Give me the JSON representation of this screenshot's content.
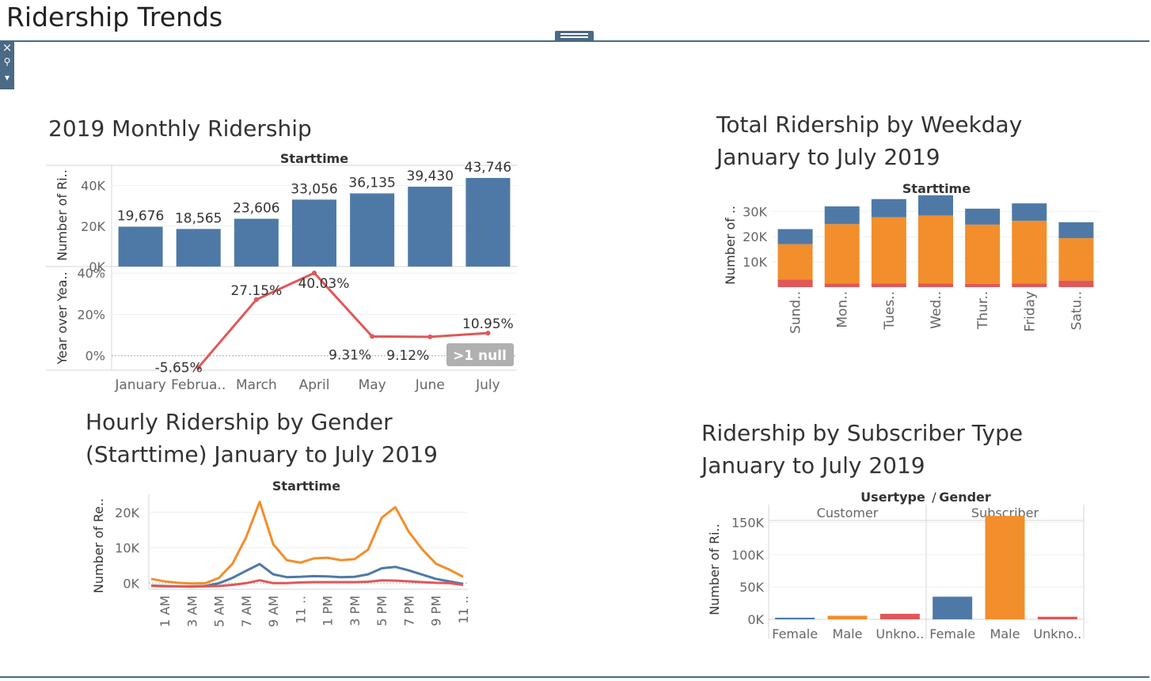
{
  "dashboard": {
    "title": "Ridership Trends"
  },
  "controls": {
    "close_glyph": "×",
    "pin_glyph": "⚲",
    "menu_glyph": "▾"
  },
  "colors": {
    "blue": "#4e79a7",
    "orange": "#f28e2b",
    "red": "#e15759",
    "gray_badge": "#b0b0b0"
  },
  "sheets": {
    "monthly": {
      "title": "2019 Monthly Ridership"
    },
    "weekday": {
      "title_line1": "Total Ridership by Weekday",
      "title_line2": "January to July 2019"
    },
    "hourly": {
      "title_line1": "Hourly Ridership by Gender",
      "title_line2": "(Starttime) January to July 2019"
    },
    "subscriber": {
      "title_line1": "Ridership by Subscriber Type",
      "title_line2": "January to July 2019"
    }
  },
  "chart_data": [
    {
      "id": "monthly_bar",
      "type": "bar",
      "header": "Starttime",
      "ylabel": "Number of Ri..",
      "categories": [
        "January",
        "Februa..",
        "March",
        "April",
        "May",
        "June",
        "July"
      ],
      "values": [
        19676,
        18565,
        23606,
        33056,
        36135,
        39430,
        43746
      ],
      "value_labels": [
        "19,676",
        "18,565",
        "23,606",
        "33,056",
        "36,135",
        "39,430",
        "43,746"
      ],
      "yticks": [
        {
          "v": 0,
          "label": "0K"
        },
        {
          "v": 20000,
          "label": "20K"
        },
        {
          "v": 40000,
          "label": "40K"
        }
      ],
      "ylim": [
        0,
        50000
      ],
      "color": "#4e79a7"
    },
    {
      "id": "monthly_yoy",
      "type": "line",
      "ylabel": "Year over Yea..",
      "categories": [
        "January",
        "Februa..",
        "March",
        "April",
        "May",
        "June",
        "July"
      ],
      "values": [
        null,
        -5.65,
        27.15,
        40.03,
        9.31,
        9.12,
        10.95
      ],
      "value_labels": [
        "",
        "-5.65%",
        "27.15%",
        "40.03%",
        "9.31%",
        "9.12%",
        "10.95%"
      ],
      "yticks": [
        {
          "v": 0,
          "label": "0%"
        },
        {
          "v": 20,
          "label": "20%"
        },
        {
          "v": 40,
          "label": "40%"
        }
      ],
      "ylim": [
        -7,
        42
      ],
      "null_indicator": ">1 null",
      "color": "#e15759"
    },
    {
      "id": "weekday",
      "type": "bar",
      "stacked": true,
      "header": "Starttime",
      "ylabel": "Number of ..",
      "categories": [
        "Sund..",
        "Mon..",
        "Tues..",
        "Wed..",
        "Thur..",
        "Friday",
        "Satu.."
      ],
      "series": [
        {
          "values": [
            3000,
            1500,
            1400,
            1400,
            1300,
            1500,
            2600
          ],
          "color": "#e15759"
        },
        {
          "values": [
            14000,
            23500,
            26300,
            27000,
            23500,
            24800,
            16800
          ],
          "color": "#f28e2b"
        },
        {
          "values": [
            6000,
            7000,
            7200,
            8000,
            6300,
            6900,
            6300
          ],
          "color": "#4e79a7"
        }
      ],
      "yticks": [
        {
          "v": 10000,
          "label": "10K"
        },
        {
          "v": 20000,
          "label": "20K"
        },
        {
          "v": 30000,
          "label": "30K"
        }
      ],
      "ylim": [
        0,
        37000
      ]
    },
    {
      "id": "hourly",
      "type": "line",
      "header": "Starttime",
      "ylabel": "Number of Re..",
      "x": [
        0,
        1,
        2,
        3,
        4,
        5,
        6,
        7,
        8,
        9,
        10,
        11,
        12,
        13,
        14,
        15,
        16,
        17,
        18,
        19,
        20,
        21,
        22,
        23
      ],
      "xtick_labels": [
        "1 AM",
        "3 AM",
        "5 AM",
        "7 AM",
        "9 AM",
        "11 ..",
        "1 PM",
        "3 PM",
        "5 PM",
        "7 PM",
        "9 PM",
        "11 .."
      ],
      "xtick_hours": [
        1,
        3,
        5,
        7,
        9,
        11,
        13,
        15,
        17,
        19,
        21,
        23
      ],
      "series": [
        {
          "values": [
            1200,
            500,
            100,
            -100,
            0,
            1500,
            5500,
            13000,
            23000,
            11000,
            6500,
            5800,
            7000,
            7200,
            6500,
            6800,
            9500,
            18500,
            21500,
            14500,
            9500,
            5500,
            3800,
            1800
          ],
          "color": "#f28e2b"
        },
        {
          "values": [
            -700,
            -800,
            -900,
            -900,
            -800,
            0,
            1500,
            3500,
            5400,
            2500,
            1700,
            1800,
            2000,
            1900,
            1700,
            1800,
            2500,
            4200,
            4600,
            3600,
            2400,
            1200,
            500,
            -200
          ],
          "color": "#4e79a7"
        },
        {
          "values": [
            -800,
            -900,
            -900,
            -1000,
            -900,
            -800,
            -500,
            0,
            800,
            0,
            0,
            200,
            300,
            300,
            300,
            300,
            400,
            800,
            700,
            500,
            300,
            100,
            0,
            -500
          ],
          "color": "#e15759"
        }
      ],
      "yticks": [
        {
          "v": 0,
          "label": "0K"
        },
        {
          "v": 10000,
          "label": "10K"
        },
        {
          "v": 20000,
          "label": "20K"
        }
      ],
      "ylim": [
        -1500,
        24000
      ]
    },
    {
      "id": "subscriber",
      "type": "bar",
      "header": "Usertype / Gender",
      "header_parts": [
        "Usertype",
        "/",
        "Gender"
      ],
      "ylabel": "Number of Ri..",
      "groups": [
        {
          "name": "Customer",
          "categories": [
            "Female",
            "Male",
            "Unkno.."
          ],
          "values": [
            2500,
            5500,
            8500
          ],
          "colors": [
            "#4e79a7",
            "#f28e2b",
            "#e15759"
          ]
        },
        {
          "name": "Subscriber",
          "categories": [
            "Female",
            "Male",
            "Unkno.."
          ],
          "values": [
            35000,
            160000,
            4000
          ],
          "colors": [
            "#4e79a7",
            "#f28e2b",
            "#e15759"
          ]
        }
      ],
      "yticks": [
        {
          "v": 0,
          "label": "0K"
        },
        {
          "v": 50000,
          "label": "50K"
        },
        {
          "v": 100000,
          "label": "100K"
        },
        {
          "v": 150000,
          "label": "150K"
        }
      ],
      "ylim": [
        0,
        175000
      ]
    }
  ]
}
